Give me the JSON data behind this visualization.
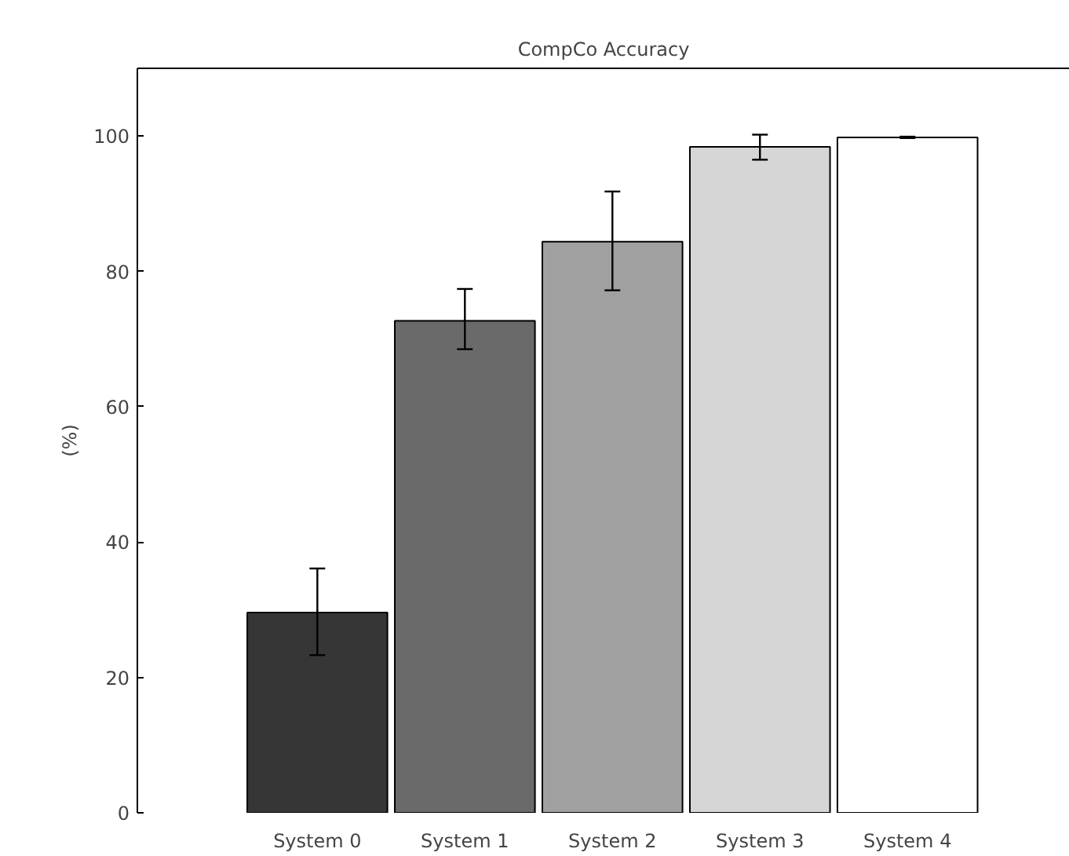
{
  "chart_data": {
    "type": "bar",
    "title": "CompCo Accuracy",
    "ylabel": "(%)",
    "categories": [
      "System 0",
      "System 1",
      "System 2",
      "System 3",
      "System 4"
    ],
    "values": [
      29.6,
      72.7,
      84.4,
      98.4,
      99.8
    ],
    "colors": [
      "#363636",
      "#6a6a6a",
      "#a0a0a0",
      "#d6d6d6",
      "#ffffff"
    ],
    "errors": [
      [
        23.3,
        36.1
      ],
      [
        68.5,
        77.4
      ],
      [
        77.2,
        91.8
      ],
      [
        96.5,
        100.2
      ],
      [
        99.7,
        99.9
      ]
    ],
    "ylim": [
      0,
      110
    ],
    "yticks": [
      0,
      20,
      40,
      60,
      80,
      100
    ],
    "grid": false
  }
}
